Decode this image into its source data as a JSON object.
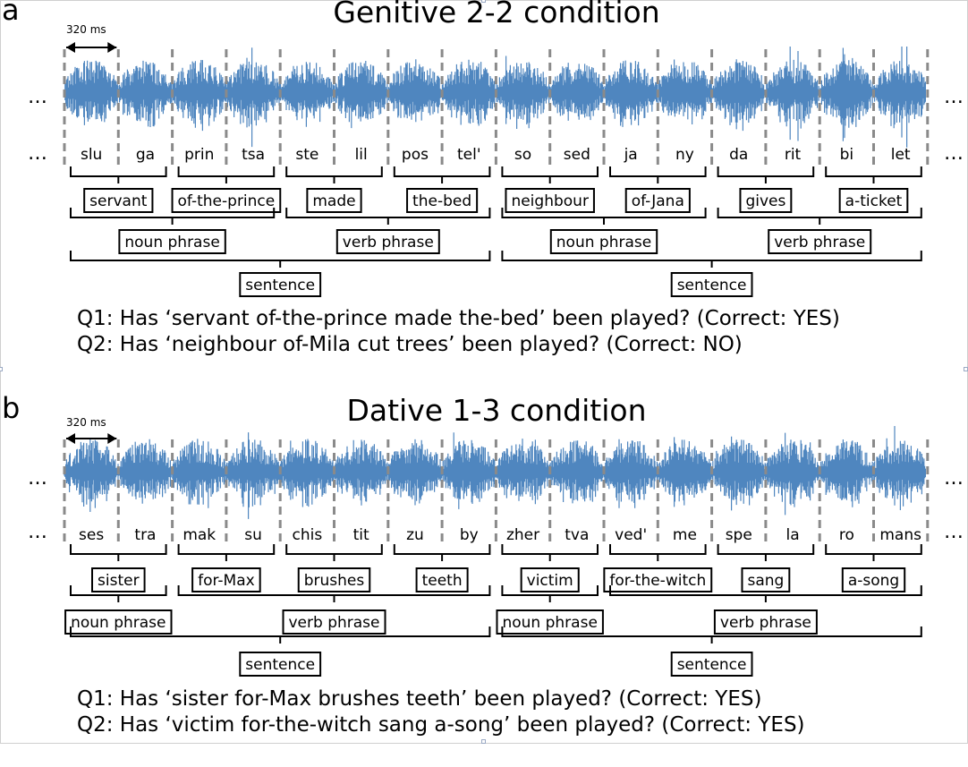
{
  "panels": [
    {
      "letter": "a",
      "title": "Genitive 2-2 condition",
      "duration_label": "320 ms",
      "ellipsis": "…",
      "syllables": [
        "slu",
        "ga",
        "prin",
        "tsa",
        "ste",
        "lil",
        "pos",
        "tel'",
        "so",
        "sed",
        "ja",
        "ny",
        "da",
        "rit",
        "bi",
        "let"
      ],
      "words": [
        {
          "label": "servant",
          "span": [
            0,
            1
          ]
        },
        {
          "label": "of-the-prince",
          "span": [
            2,
            3
          ]
        },
        {
          "label": "made",
          "span": [
            4,
            5
          ]
        },
        {
          "label": "the-bed",
          "span": [
            6,
            7
          ]
        },
        {
          "label": "neighbour",
          "span": [
            8,
            9
          ]
        },
        {
          "label": "of-Jana",
          "span": [
            10,
            11
          ]
        },
        {
          "label": "gives",
          "span": [
            12,
            13
          ]
        },
        {
          "label": "a-ticket",
          "span": [
            14,
            15
          ]
        }
      ],
      "phrases": [
        {
          "label": "noun phrase",
          "span": [
            0,
            3
          ]
        },
        {
          "label": "verb phrase",
          "span": [
            4,
            7
          ]
        },
        {
          "label": "noun phrase",
          "span": [
            8,
            11
          ]
        },
        {
          "label": "verb phrase",
          "span": [
            12,
            15
          ]
        }
      ],
      "sentences": [
        {
          "label": "sentence",
          "span": [
            0,
            7
          ]
        },
        {
          "label": "sentence",
          "span": [
            8,
            15
          ]
        }
      ],
      "questions": [
        "Q1: Has ‘servant of-the-prince made the-bed’ been played? (Correct: YES)",
        "Q2: Has ‘neighbour of-Mila cut trees’ been played? (Correct: NO)"
      ]
    },
    {
      "letter": "b",
      "title": "Dative 1-3 condition",
      "duration_label": "320 ms",
      "ellipsis": "…",
      "syllables": [
        "ses",
        "tra",
        "mak",
        "su",
        "chis",
        "tit",
        "zu",
        "by",
        "zher",
        "tva",
        "ved'",
        "me",
        "spe",
        "la",
        "ro",
        "mans"
      ],
      "words": [
        {
          "label": "sister",
          "span": [
            0,
            1
          ]
        },
        {
          "label": "for-Max",
          "span": [
            2,
            3
          ]
        },
        {
          "label": "brushes",
          "span": [
            4,
            5
          ]
        },
        {
          "label": "teeth",
          "span": [
            6,
            7
          ]
        },
        {
          "label": "victim",
          "span": [
            8,
            9
          ]
        },
        {
          "label": "for-the-witch",
          "span": [
            10,
            11
          ]
        },
        {
          "label": "sang",
          "span": [
            12,
            13
          ]
        },
        {
          "label": "a-song",
          "span": [
            14,
            15
          ]
        }
      ],
      "phrases": [
        {
          "label": "noun phrase",
          "span": [
            0,
            1
          ]
        },
        {
          "label": "verb phrase",
          "span": [
            2,
            7
          ]
        },
        {
          "label": "noun phrase",
          "span": [
            8,
            9
          ]
        },
        {
          "label": "verb phrase",
          "span": [
            10,
            15
          ]
        }
      ],
      "sentences": [
        {
          "label": "sentence",
          "span": [
            0,
            7
          ]
        },
        {
          "label": "sentence",
          "span": [
            8,
            15
          ]
        }
      ],
      "questions": [
        "Q1: Has ‘sister for-Max brushes teeth’ been played? (Correct: YES)",
        "Q2: Has ‘victim for-the-witch sang a-song’ been played? (Correct: YES)"
      ]
    }
  ],
  "colors": {
    "waveform": "#4f86bf",
    "divider": "#8a8a8a",
    "ink": "#000000"
  }
}
